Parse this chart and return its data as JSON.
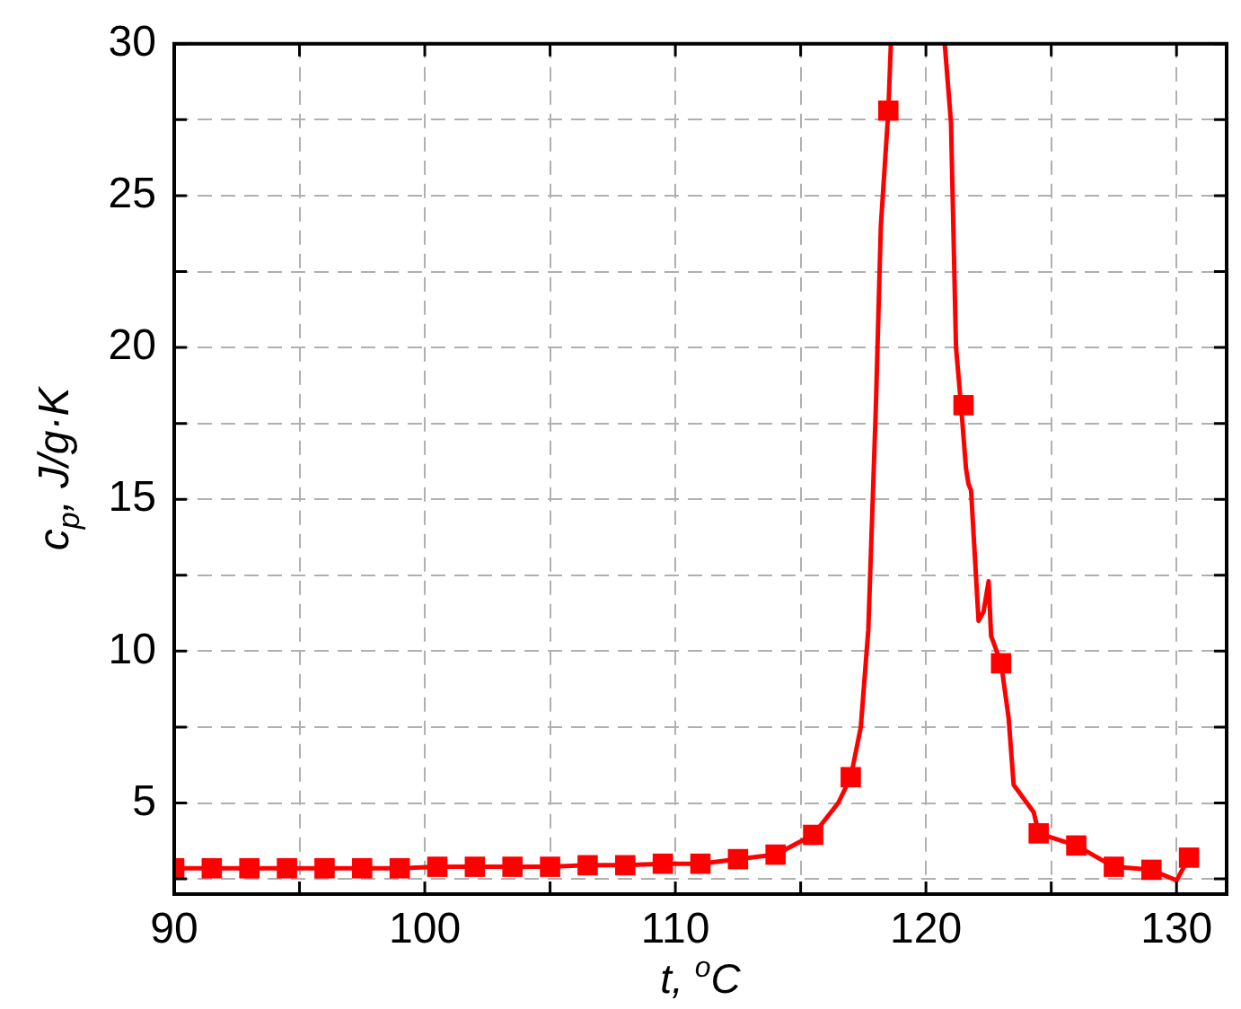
{
  "chart_data": {
    "type": "line",
    "xlabel": "t, $^{o}$C",
    "ylabel": "c$_{p}$, J/g·K",
    "xlim": [
      90,
      132
    ],
    "xticks": [
      90,
      {
        "value": 95,
        "label": null
      },
      100,
      {
        "value": 105,
        "label": null
      },
      110,
      {
        "value": 115,
        "label": null
      },
      120,
      {
        "value": 125,
        "label": null
      },
      130
    ],
    "ylim": [
      2,
      30
    ],
    "yticks": [
      {
        "value": 2.5,
        "label": null
      },
      5,
      {
        "value": 7.5,
        "label": null
      },
      10,
      {
        "value": 12.5,
        "label": null
      },
      15,
      {
        "value": 17.5,
        "label": null
      },
      20,
      {
        "value": 22.5,
        "label": null
      },
      25,
      {
        "value": 27.5,
        "label": null
      },
      30
    ],
    "grid": true,
    "line_style": "solid",
    "series": [
      {
        "type": "line",
        "color": "#ff0000",
        "marker": "none",
        "x": [
          90,
          91.5,
          93,
          94.5,
          96,
          97.5,
          99,
          100.5,
          102,
          103.5,
          105,
          106.5,
          108,
          109.5,
          111,
          112.5,
          114,
          115.5,
          116.5,
          117,
          117.4,
          117.7,
          118,
          118.2,
          118.5,
          118.6,
          119.5,
          120.75,
          121,
          121.2,
          121.4,
          121.6,
          121.7,
          121.8,
          122.1,
          122.3,
          122.5,
          122.6,
          123,
          123.3,
          123.5,
          124.3,
          124.5,
          126,
          127.5,
          129,
          130,
          130.5
        ],
        "values": [
          2.85,
          2.85,
          2.85,
          2.85,
          2.85,
          2.85,
          2.85,
          2.9,
          2.9,
          2.9,
          2.9,
          2.95,
          2.95,
          3.0,
          3.0,
          3.15,
          3.3,
          3.95,
          5.0,
          5.85,
          7.5,
          10.7,
          18,
          24,
          27.8,
          30,
          null,
          30,
          27.4,
          20,
          18.1,
          16,
          15.5,
          15.3,
          11.0,
          11.3,
          12.3,
          10.5,
          9.6,
          7.8,
          5.6,
          4.7,
          4.0,
          3.6,
          2.9,
          2.8,
          2.45,
          3.2
        ]
      },
      {
        "type": "scatter",
        "color": "#ff0000",
        "marker": "square",
        "x": [
          90,
          91.5,
          93,
          94.5,
          96,
          97.5,
          99,
          100.5,
          102,
          103.5,
          105,
          106.5,
          108,
          109.5,
          111,
          112.5,
          114,
          115.5,
          117,
          118.5,
          121.5,
          123,
          124.5,
          126,
          127.5,
          129,
          130.5
        ],
        "values": [
          2.85,
          2.85,
          2.85,
          2.85,
          2.85,
          2.85,
          2.85,
          2.9,
          2.9,
          2.9,
          2.9,
          2.95,
          2.95,
          3.0,
          3.0,
          3.15,
          3.3,
          3.95,
          5.85,
          27.8,
          18.1,
          9.6,
          4.0,
          3.6,
          2.9,
          2.8,
          3.2
        ]
      }
    ]
  }
}
